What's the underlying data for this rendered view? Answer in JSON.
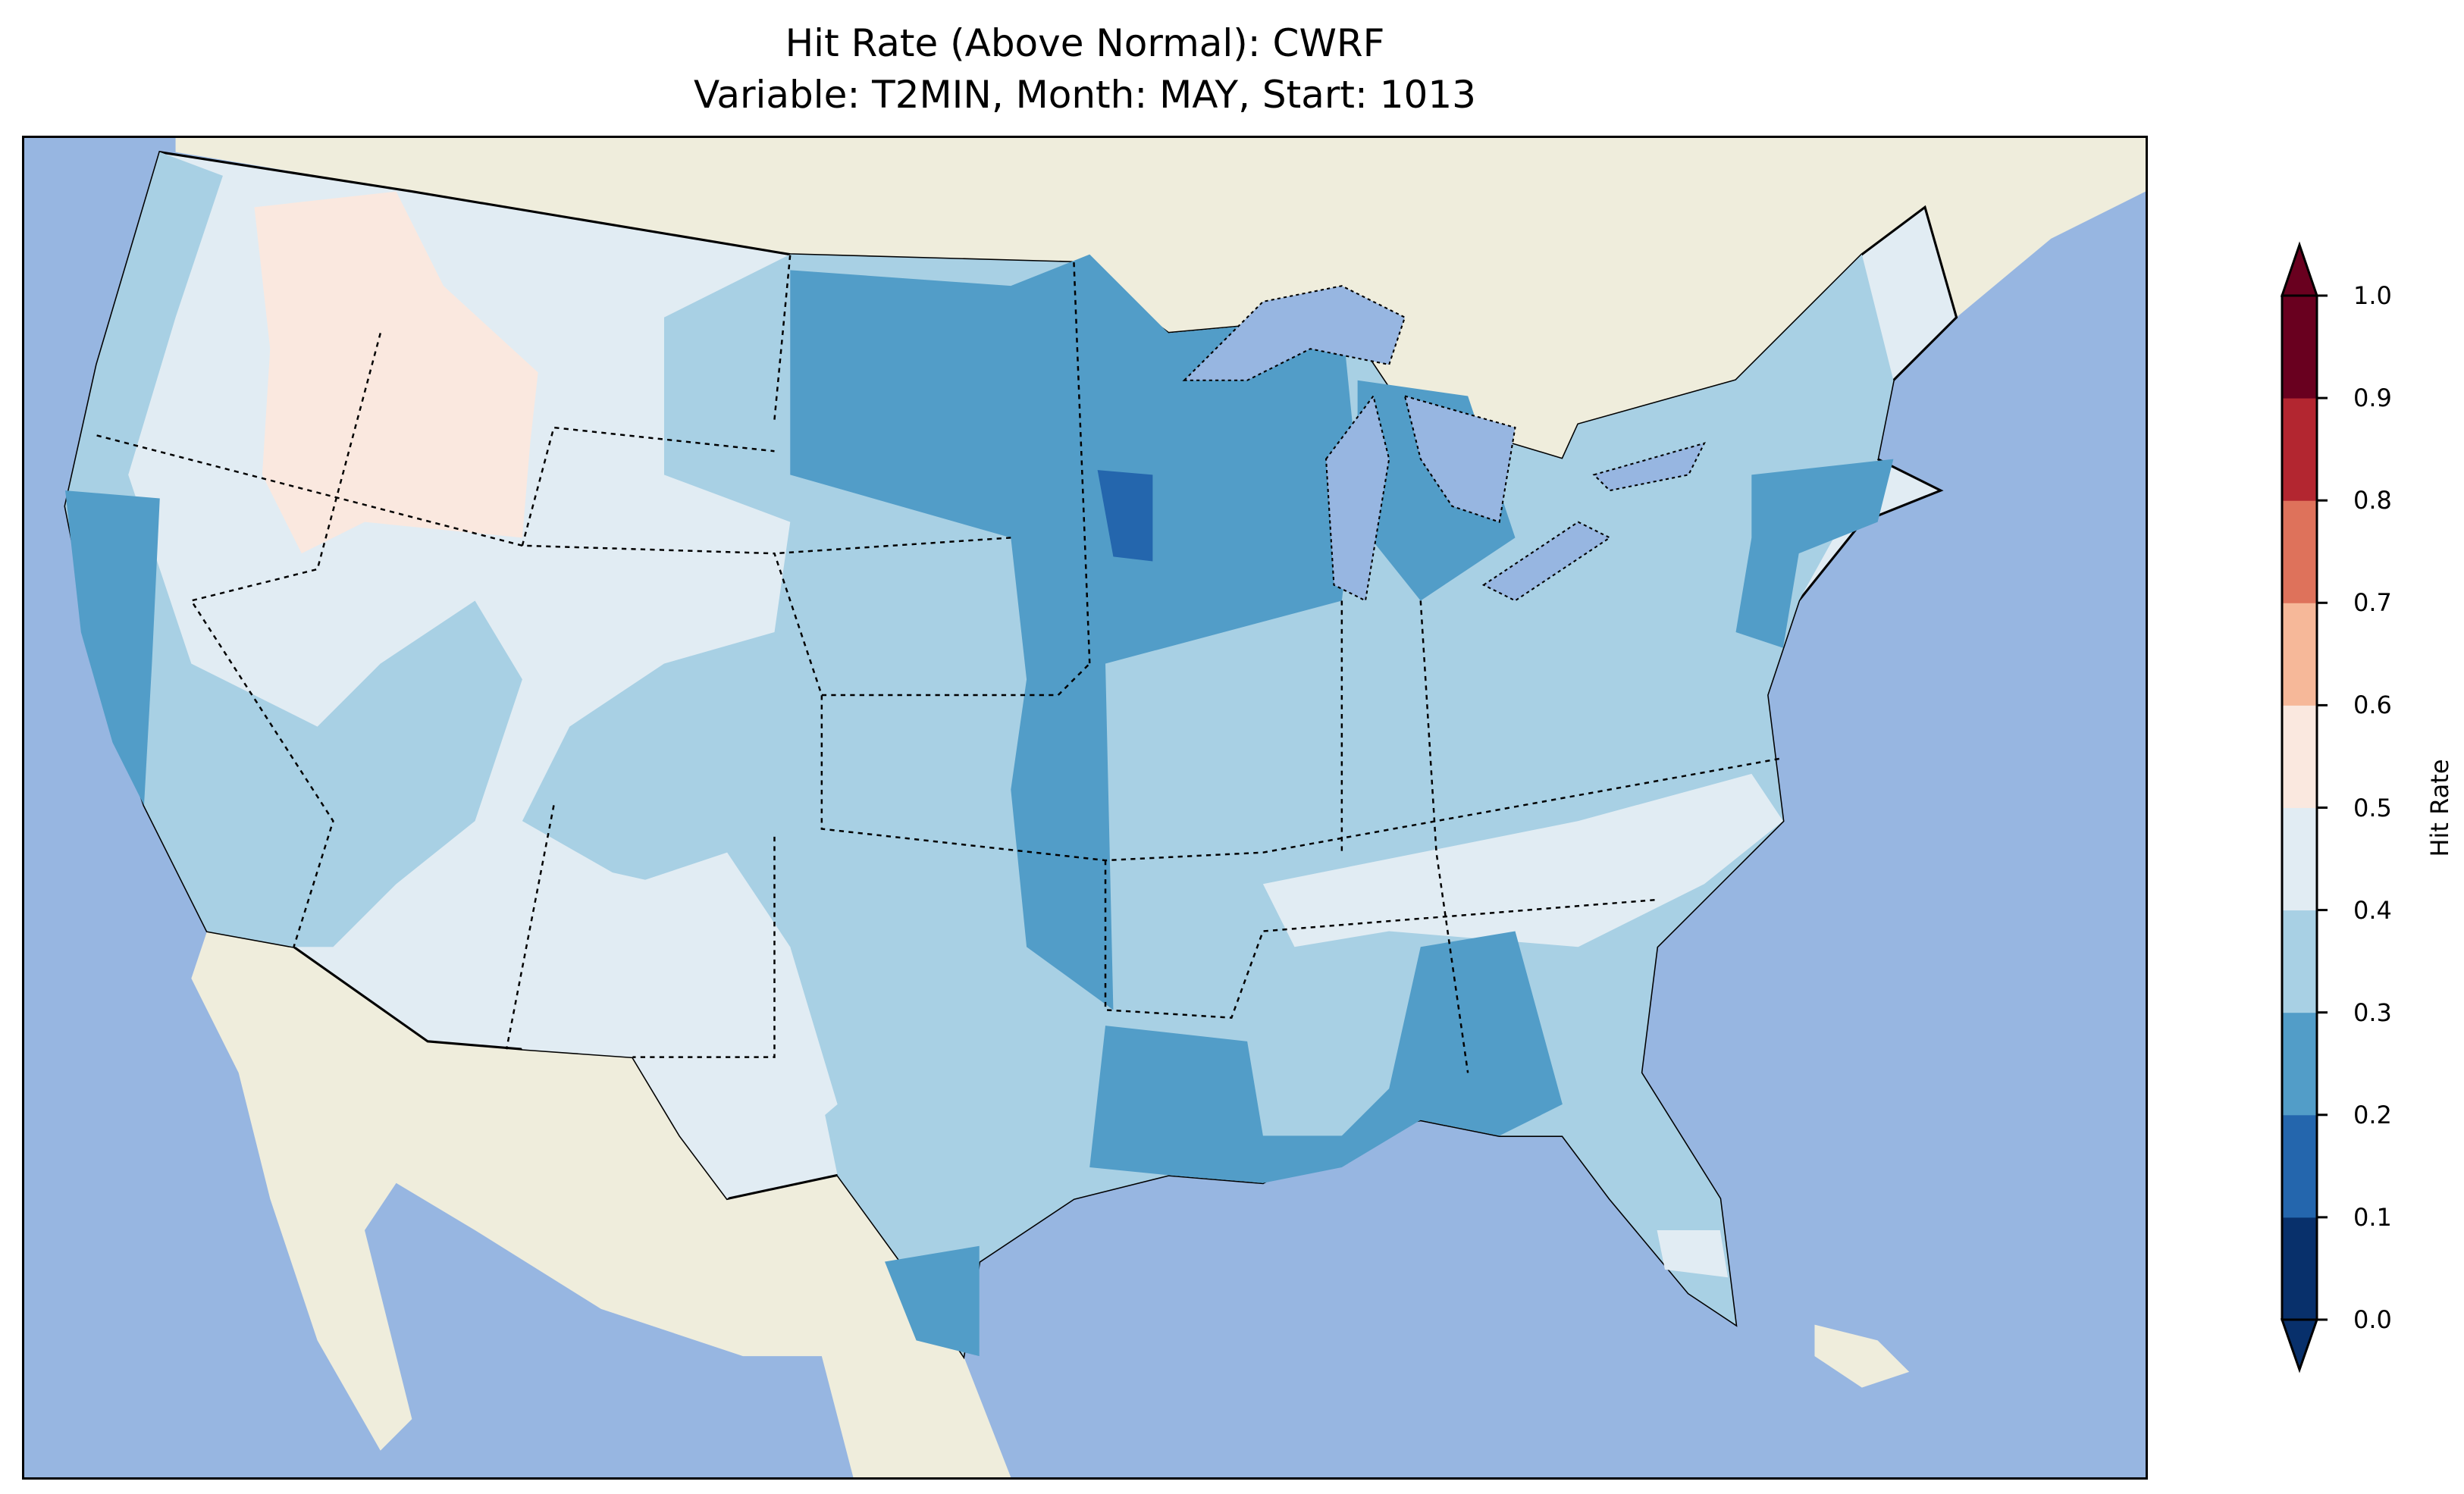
{
  "title": {
    "line1": "Hit Rate (Above Normal): CWRF",
    "line2": "Variable: T2MIN, Month: MAY, Start: 1013"
  },
  "map_colors": {
    "ocean": "#97b6e1",
    "land": "#efeddc",
    "lakes": "#97b6e1"
  },
  "colorbar": {
    "label": "Hit Rate",
    "ticks": [
      "0.0",
      "0.1",
      "0.2",
      "0.3",
      "0.4",
      "0.5",
      "0.6",
      "0.7",
      "0.8",
      "0.9",
      "1.0"
    ],
    "colors": [
      "#08306b",
      "#2466ad",
      "#529dc8",
      "#a8d0e4",
      "#e1ecf3",
      "#fae8df",
      "#f6b899",
      "#de725b",
      "#b32630",
      "#69001f"
    ],
    "extend": "both"
  },
  "chart_data": {
    "type": "heatmap",
    "title": "Hit Rate (Above Normal): CWRF\nVariable: T2MIN, Month: MAY, Start: 1013",
    "region": "Contiguous United States",
    "colorbar_label": "Hit Rate",
    "levels": [
      0.0,
      0.1,
      0.2,
      0.3,
      0.4,
      0.5,
      0.6,
      0.7,
      0.8,
      0.9,
      1.0
    ],
    "range": [
      0.0,
      1.0
    ]
  }
}
